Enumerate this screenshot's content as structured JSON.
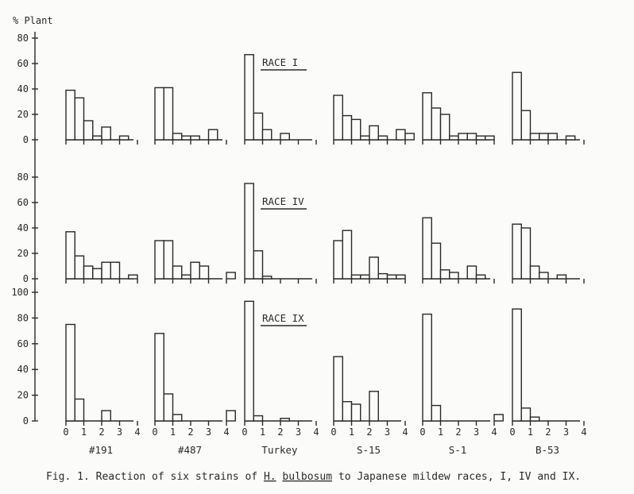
{
  "chart_data": {
    "type": "bar",
    "ylabel": "% Plant",
    "x_tick_labels": [
      "0",
      "1",
      "2",
      "3",
      "4"
    ],
    "bin_starts": [
      0,
      0.5,
      1,
      1.5,
      2,
      2.5,
      3,
      3.5,
      4
    ],
    "strains": [
      "#191",
      "#487",
      "Turkey",
      "S-15",
      "S-1",
      "B-53"
    ],
    "caption": {
      "prefix": "Fig. 1. Reaction of six strains of ",
      "genus": "H.",
      "species": "bulbosum",
      "suffix": " to Japanese mildew races, I, IV and IX."
    },
    "panels": [
      {
        "race": "RACE I",
        "ylim": [
          0,
          80
        ],
        "yticks": [
          "0",
          "20",
          "40",
          "60",
          "80"
        ],
        "values": [
          [
            39,
            33,
            15,
            3,
            10,
            0,
            3,
            0,
            0
          ],
          [
            41,
            41,
            5,
            3,
            3,
            0,
            8,
            0,
            0
          ],
          [
            67,
            21,
            8,
            0,
            5,
            0,
            0,
            0,
            0
          ],
          [
            35,
            19,
            16,
            3,
            11,
            3,
            0,
            8,
            5
          ],
          [
            37,
            25,
            20,
            3,
            5,
            5,
            3,
            3,
            0
          ],
          [
            53,
            23,
            5,
            5,
            5,
            0,
            3,
            0,
            0
          ]
        ]
      },
      {
        "race": "RACE IV",
        "ylim": [
          0,
          80
        ],
        "yticks": [
          "0",
          "20",
          "40",
          "60",
          "80"
        ],
        "values": [
          [
            37,
            18,
            10,
            8,
            13,
            13,
            0,
            3,
            0
          ],
          [
            30,
            30,
            10,
            3,
            13,
            10,
            0,
            0,
            5
          ],
          [
            75,
            22,
            2,
            0,
            0,
            0,
            0,
            0,
            0
          ],
          [
            30,
            38,
            3,
            3,
            17,
            4,
            3,
            3,
            0
          ],
          [
            48,
            28,
            7,
            5,
            0,
            10,
            3,
            0,
            0
          ],
          [
            43,
            40,
            10,
            5,
            0,
            3,
            0,
            0,
            0
          ]
        ]
      },
      {
        "race": "RACE IX",
        "ylim": [
          0,
          100
        ],
        "yticks": [
          "0",
          "20",
          "40",
          "60",
          "80",
          "100"
        ],
        "values": [
          [
            75,
            17,
            0,
            0,
            8,
            0,
            0,
            0,
            0
          ],
          [
            68,
            21,
            5,
            0,
            0,
            0,
            0,
            0,
            8
          ],
          [
            93,
            4,
            0,
            0,
            2,
            0,
            0,
            0,
            0
          ],
          [
            50,
            15,
            13,
            0,
            23,
            0,
            0,
            0,
            0
          ],
          [
            83,
            12,
            0,
            0,
            0,
            0,
            0,
            0,
            5
          ],
          [
            87,
            10,
            3,
            0,
            0,
            0,
            0,
            0,
            0
          ]
        ]
      }
    ]
  }
}
